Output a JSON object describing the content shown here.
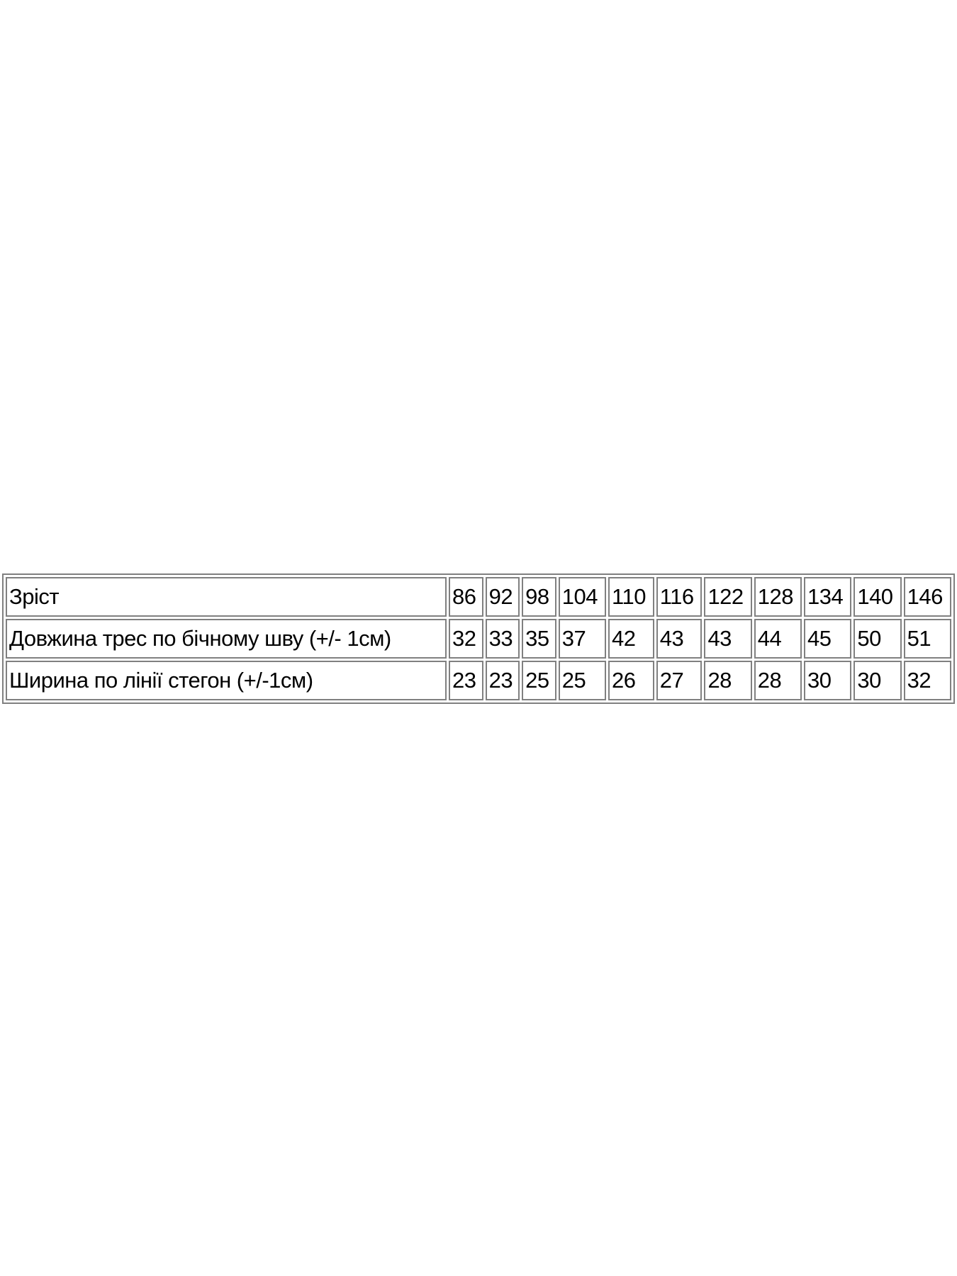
{
  "table": {
    "rows": [
      {
        "label": "Зріст",
        "values": [
          "86",
          "92",
          "98",
          "104",
          "110",
          "116",
          "122",
          "128",
          "134",
          "140",
          "146"
        ]
      },
      {
        "label": "Довжина трес по бічному шву (+/- 1см)",
        "values": [
          "32",
          "33",
          "35",
          "37",
          "42",
          "43",
          "43",
          "44",
          "45",
          "50",
          "51"
        ]
      },
      {
        "label": "Ширина по лінії стегон (+/-1см)",
        "values": [
          "23",
          "23",
          "25",
          "25",
          "26",
          "27",
          "28",
          "28",
          "30",
          "30",
          "32"
        ]
      }
    ]
  }
}
